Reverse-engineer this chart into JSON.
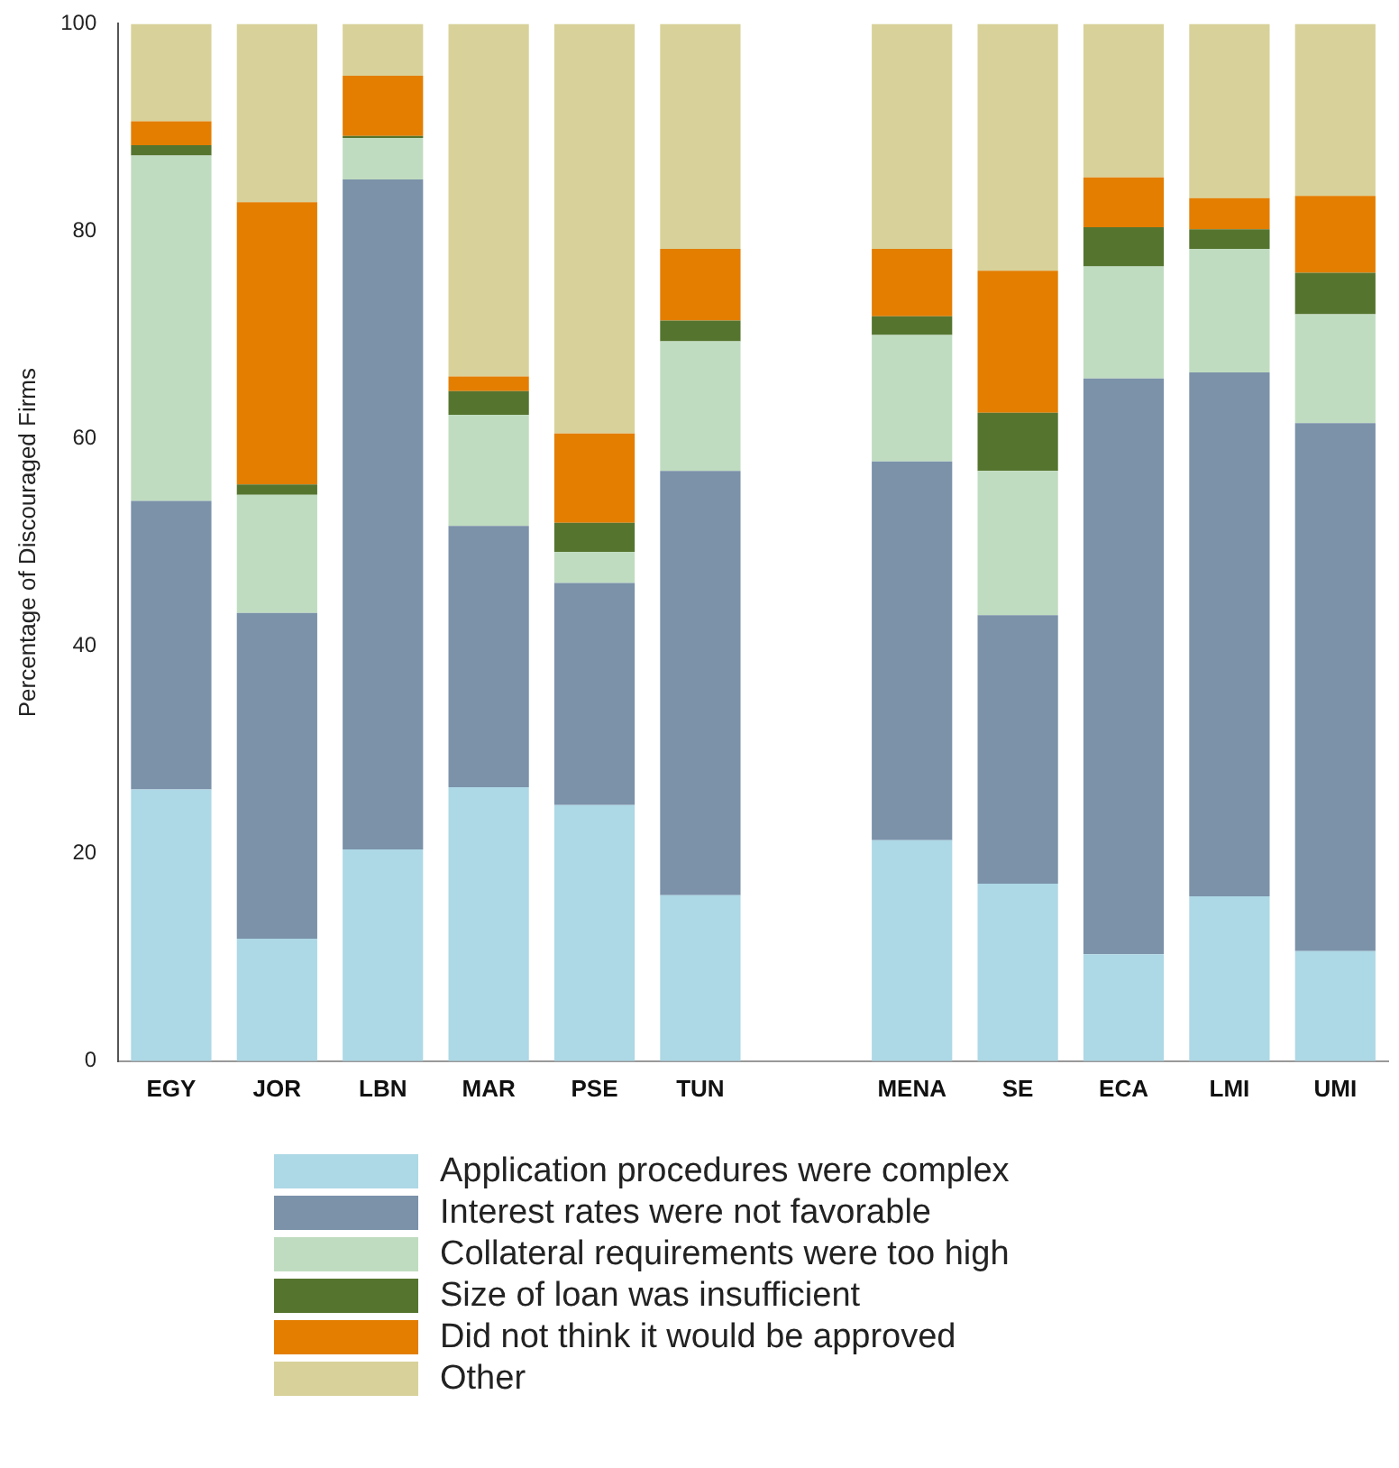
{
  "chart_data": {
    "type": "bar",
    "stacked": true,
    "ylabel": "Percentage of Discouraged Firms",
    "categories": [
      "EGY",
      "JOR",
      "LBN",
      "MAR",
      "PSE",
      "TUN",
      null,
      "MENA",
      "SE",
      "ECA",
      "LMI",
      "UMI"
    ],
    "series": [
      {
        "name": "Application procedures were complex",
        "color": "#add8e6",
        "values": [
          26.2,
          11.8,
          20.4,
          26.4,
          24.7,
          16.0,
          null,
          21.3,
          17.1,
          10.3,
          15.9,
          10.6
        ]
      },
      {
        "name": "Interest rates were not favorable",
        "color": "#7b92a9",
        "values": [
          27.8,
          31.4,
          64.6,
          25.2,
          21.4,
          40.9,
          null,
          36.5,
          25.9,
          55.5,
          50.5,
          50.9
        ]
      },
      {
        "name": "Collateral requirements were too high",
        "color": "#c0dcc0",
        "values": [
          33.3,
          11.4,
          4.0,
          10.7,
          3.0,
          12.5,
          null,
          12.2,
          13.9,
          10.8,
          11.9,
          10.5
        ]
      },
      {
        "name": "Size of loan was insufficient",
        "color": "#55752f",
        "values": [
          1.0,
          1.0,
          0.2,
          2.3,
          2.8,
          2.0,
          null,
          1.8,
          5.6,
          3.8,
          1.9,
          4.0
        ]
      },
      {
        "name": "Did not think it would be approved",
        "color": "#e37e00",
        "values": [
          2.3,
          27.2,
          5.8,
          1.4,
          8.6,
          6.9,
          null,
          6.5,
          13.7,
          4.8,
          3.0,
          7.4
        ]
      },
      {
        "name": "Other",
        "color": "#d8d29a",
        "values": [
          9.4,
          17.2,
          5.0,
          34.0,
          39.5,
          21.7,
          null,
          21.7,
          23.8,
          14.8,
          16.8,
          16.6
        ]
      }
    ],
    "ylim": [
      0,
      100
    ],
    "yticks": [
      0,
      20,
      40,
      60,
      80,
      100
    ],
    "grid": false,
    "legend": "bottom"
  }
}
